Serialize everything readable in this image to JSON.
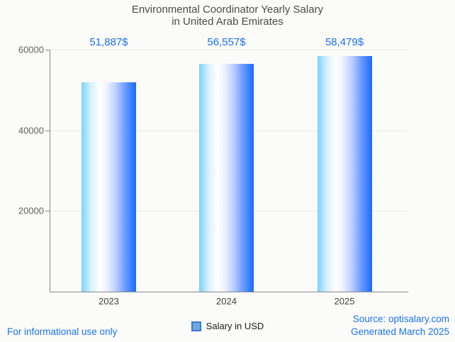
{
  "chart_data": {
    "type": "bar",
    "title_line1": "Environmental Coordinator Yearly Salary",
    "title_line2": "in United Arab Emirates",
    "categories": [
      "2023",
      "2024",
      "2025"
    ],
    "values": [
      51887,
      56557,
      58479
    ],
    "value_labels": [
      "51,887$",
      "56,557$",
      "58,479$"
    ],
    "series_name": "Salary in USD",
    "ylabel": "",
    "xlabel": "",
    "ylim": [
      0,
      60000
    ],
    "yticks": [
      60000,
      40000,
      20000
    ],
    "ytick_labels": [
      "60000",
      "40000",
      "20000"
    ],
    "grid": true,
    "legend_position": "bottom"
  },
  "footer": {
    "left": "For informational use only",
    "source": "Source: optisalary.com",
    "generated": "Generated March 2025"
  },
  "colors": {
    "accent_blue": "#1a73e8",
    "title_gray": "#4a4a4a",
    "axis_label_gray": "#616161",
    "axis_line": "#888888",
    "gridline": "#e8e8e8",
    "bar_left": "#7ed2fb",
    "bar_mid": "#ffffff",
    "bar_right": "#176bfe",
    "background": "#fbfbfa"
  }
}
